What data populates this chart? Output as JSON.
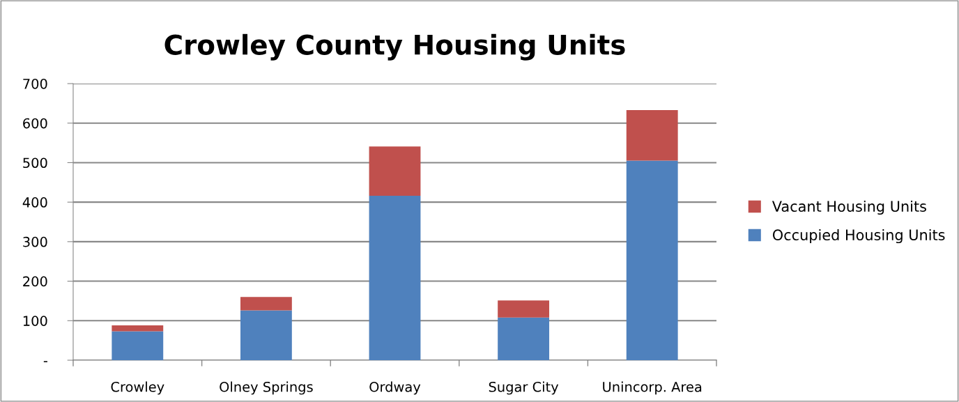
{
  "chart_data": {
    "type": "bar",
    "title": "Crowley County Housing Units",
    "stacked": true,
    "categories": [
      "Crowley",
      "Olney Springs",
      "Ordway",
      "Sugar City",
      "Unincorp. Area"
    ],
    "series": [
      {
        "name": "Occupied Housing Units",
        "color": "#4f81bd",
        "values": [
          73,
          126,
          416,
          108,
          505
        ]
      },
      {
        "name": "Vacant Housing Units",
        "color": "#c0504d",
        "values": [
          15,
          34,
          125,
          43,
          128
        ]
      }
    ],
    "ylim": [
      0,
      700
    ],
    "yticks": [
      {
        "value": 0,
        "label": "-"
      },
      100,
      200,
      300,
      400,
      500,
      600,
      700
    ],
    "grid": "y",
    "legend": "right"
  }
}
